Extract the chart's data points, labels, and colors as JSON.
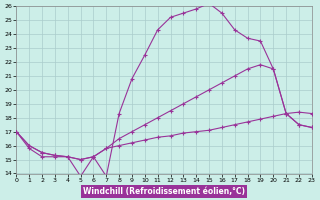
{
  "background_color": "#cceee8",
  "grid_color": "#aacccc",
  "line_color": "#993399",
  "xlim": [
    0,
    23
  ],
  "ylim": [
    14,
    26
  ],
  "yticks": [
    14,
    15,
    16,
    17,
    18,
    19,
    20,
    21,
    22,
    23,
    24,
    25,
    26
  ],
  "xticks": [
    0,
    1,
    2,
    3,
    4,
    5,
    6,
    7,
    8,
    9,
    10,
    11,
    12,
    13,
    14,
    15,
    16,
    17,
    18,
    19,
    20,
    21,
    22,
    23
  ],
  "xlabel": "Windchill (Refroidissement éolien,°C)",
  "curve1_x": [
    0,
    1,
    2,
    3,
    4,
    5,
    6,
    7,
    8,
    9,
    10,
    11,
    12,
    13,
    14,
    15,
    16,
    17,
    18,
    19,
    20,
    21,
    22,
    23
  ],
  "curve1_y": [
    17.0,
    15.8,
    15.2,
    15.2,
    15.2,
    13.8,
    15.2,
    13.8,
    18.3,
    20.8,
    22.5,
    24.3,
    25.2,
    25.5,
    25.8,
    26.2,
    25.5,
    24.3,
    23.7,
    23.5,
    21.5,
    18.3,
    17.5,
    17.3
  ],
  "curve2_x": [
    0,
    1,
    2,
    3,
    4,
    5,
    6,
    7,
    8,
    9,
    10,
    11,
    12,
    13,
    14,
    15,
    16,
    17,
    18,
    19,
    20,
    21,
    22,
    23
  ],
  "curve2_y": [
    17.0,
    16.0,
    15.5,
    15.3,
    15.2,
    15.0,
    15.2,
    15.8,
    16.5,
    17.0,
    17.5,
    18.0,
    18.5,
    19.0,
    19.5,
    20.0,
    20.5,
    21.0,
    21.5,
    21.8,
    21.5,
    18.3,
    17.5,
    17.3
  ],
  "curve3_x": [
    0,
    1,
    2,
    3,
    4,
    5,
    6,
    7,
    8,
    9,
    10,
    11,
    12,
    13,
    14,
    15,
    16,
    17,
    18,
    19,
    20,
    21,
    22,
    23
  ],
  "curve3_y": [
    17.0,
    16.0,
    15.5,
    15.3,
    15.2,
    15.0,
    15.2,
    15.8,
    16.0,
    16.2,
    16.4,
    16.6,
    16.7,
    16.9,
    17.0,
    17.1,
    17.3,
    17.5,
    17.7,
    17.9,
    18.1,
    18.3,
    18.4,
    18.3
  ]
}
